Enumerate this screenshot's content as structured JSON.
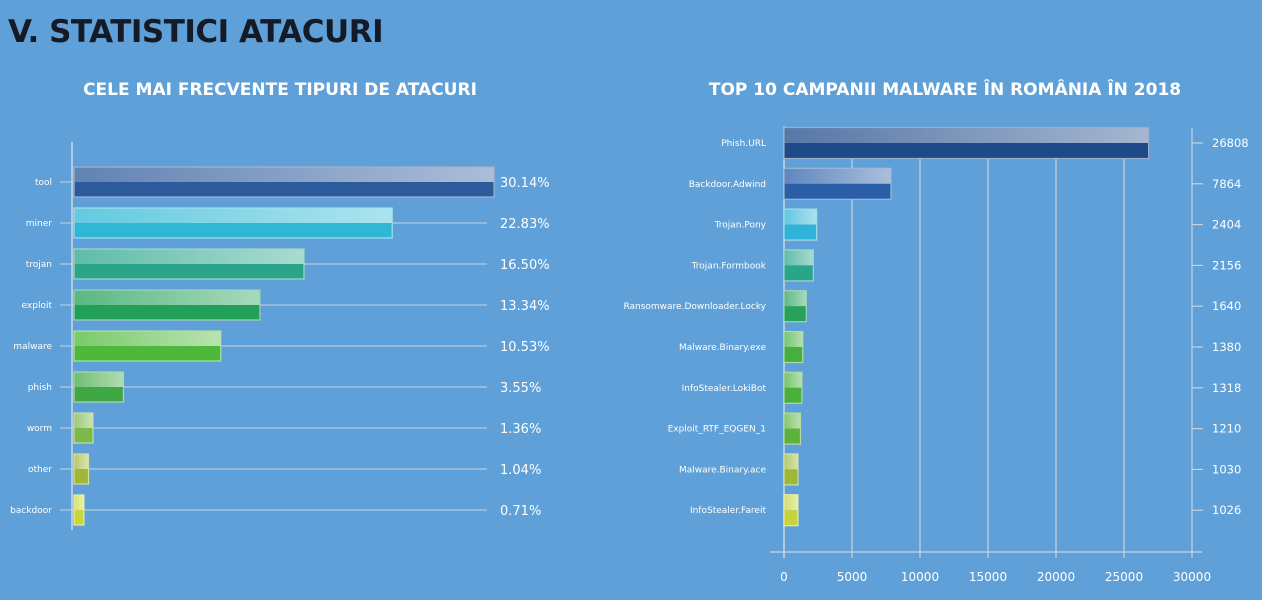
{
  "page": {
    "title": "V. STATISTICI ATACURI"
  },
  "chart_data": [
    {
      "type": "bar",
      "orientation": "horizontal",
      "title": "CELE MAI FRECVENTE TIPURI DE ATACURI",
      "categories": [
        "tool",
        "miner",
        "trojan",
        "exploit",
        "malware",
        "phish",
        "worm",
        "other",
        "backdoor"
      ],
      "values": [
        30.14,
        22.83,
        16.5,
        13.34,
        10.53,
        3.55,
        1.36,
        1.04,
        0.71
      ],
      "value_labels": [
        "30.14%",
        "22.83%",
        "16.50%",
        "13.34%",
        "10.53%",
        "3.55%",
        "1.36%",
        "1.04%",
        "0.71%"
      ],
      "unit": "%",
      "xlim": [
        0,
        32
      ],
      "grid": true,
      "colors": [
        "#2c5a9a",
        "#2fb8d6",
        "#2aa58a",
        "#22a05a",
        "#4db83a",
        "#3fa844",
        "#7cb84a",
        "#9fb83a",
        "#c8d83a"
      ]
    },
    {
      "type": "bar",
      "orientation": "horizontal",
      "title": "TOP 10 CAMPANII MALWARE ÎN ROMÂNIA ÎN 2018",
      "categories": [
        "Phish.URL",
        "Backdoor.Adwind",
        "Trojan.Pony",
        "Trojan.Formbook",
        "Ransomware.Downloader.Locky",
        "Malware.Binary.exe",
        "InfoStealer.LokiBot",
        "Exploit_RTF_EQGEN_1",
        "Malware.Binary.ace",
        "InfoStealer.Fareit"
      ],
      "values": [
        26808,
        7864,
        2404,
        2156,
        1640,
        1380,
        1318,
        1210,
        1030,
        1026
      ],
      "value_labels": [
        "26808",
        "7864",
        "2404",
        "2156",
        "1640",
        "1380",
        "1318",
        "1210",
        "1030",
        "1026"
      ],
      "xlim": [
        0,
        30000
      ],
      "xticks": [
        "0",
        "5000",
        "10000",
        "15000",
        "20000",
        "25000",
        "30000"
      ],
      "grid": true,
      "colors": [
        "#1f4a8a",
        "#2a5fa8",
        "#2fb3d8",
        "#2aa58a",
        "#28a25a",
        "#45b040",
        "#4ab03c",
        "#5cb23a",
        "#9bb83a",
        "#c6d43a"
      ]
    }
  ]
}
